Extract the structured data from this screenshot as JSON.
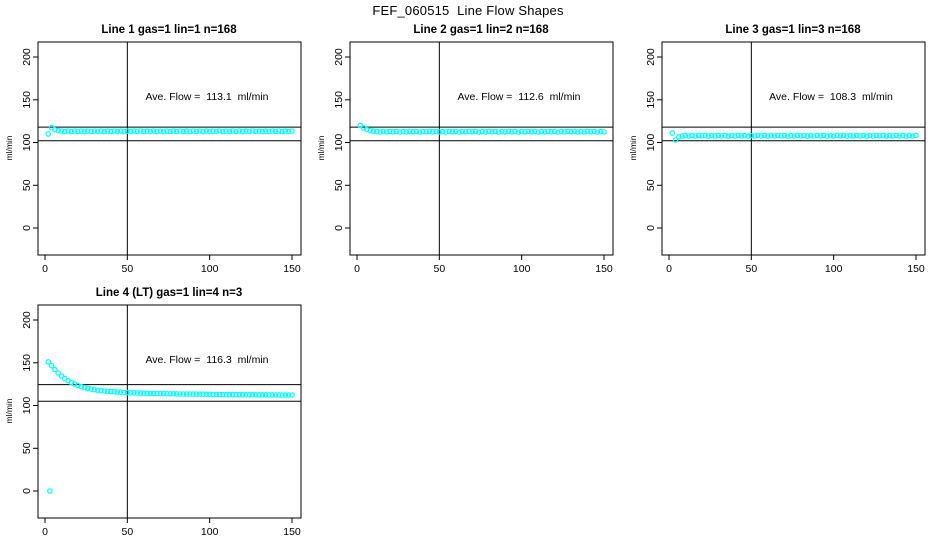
{
  "page": {
    "title": "FEF_060515  Line Flow Shapes"
  },
  "colors": {
    "point": "#00ffff",
    "axis": "#000000",
    "background": "#ffffff"
  },
  "axes": {
    "x_ticks": [
      0,
      50,
      100,
      150
    ],
    "y_ticks": [
      0,
      50,
      100,
      150,
      200
    ],
    "xlim": [
      -4,
      156
    ],
    "ylim": [
      -9,
      216
    ],
    "y_label": "ml/min",
    "grid": false
  },
  "chart_data": [
    {
      "type": "scatter",
      "title": "Line 1 gas=1 lin=1 n=168",
      "gas": 1,
      "lin": 1,
      "n": 168,
      "annotation": "Ave. Flow =  113.1  ml/min",
      "ave_flow_ml_min": 113.1,
      "vline_x": 50,
      "hlines": [
        102,
        118
      ],
      "x_start": 2,
      "x_step": 2,
      "y": [
        110,
        117.5,
        115,
        114,
        113.5,
        112.8,
        113.3,
        112.9,
        113.4,
        113.0,
        113.5,
        112.8,
        113.3,
        112.9,
        113.4,
        113.0,
        113.5,
        112.8,
        113.3,
        112.9,
        113.4,
        113.0,
        113.5,
        112.8,
        113.3,
        112.9,
        113.4,
        113.0,
        113.5,
        112.8,
        113.3,
        112.9,
        113.4,
        113.0,
        113.5,
        112.8,
        113.3,
        112.9,
        113.4,
        113.0,
        113.5,
        112.8,
        113.3,
        112.9,
        113.4,
        113.0,
        113.5,
        112.8,
        113.3,
        112.9,
        113.4,
        113.0,
        113.5,
        112.8,
        113.3,
        112.9,
        113.4,
        113.0,
        113.5,
        112.8,
        113.3,
        112.9,
        113.4,
        113.0,
        113.5,
        112.8,
        113.3,
        112.9,
        113.4,
        113.0,
        113.5,
        112.8,
        113.3,
        112.9,
        113.4
      ]
    },
    {
      "type": "scatter",
      "title": "Line 2 gas=1 lin=2 n=168",
      "gas": 1,
      "lin": 2,
      "n": 168,
      "annotation": "Ave. Flow =  112.6  ml/min",
      "ave_flow_ml_min": 112.6,
      "vline_x": 50,
      "hlines": [
        102,
        118
      ],
      "x_start": 2,
      "x_step": 2,
      "y": [
        120,
        117,
        115.2,
        114,
        113.3,
        112.9,
        112.3,
        112.8,
        112.4,
        113.0,
        112.5,
        112.9,
        112.3,
        112.8,
        112.4,
        113.0,
        112.5,
        112.9,
        112.3,
        112.8,
        112.4,
        113.0,
        112.5,
        112.9,
        112.3,
        112.8,
        112.4,
        113.0,
        112.5,
        112.9,
        112.3,
        112.8,
        112.4,
        113.0,
        112.5,
        112.9,
        112.3,
        112.8,
        112.4,
        113.0,
        112.5,
        112.9,
        112.3,
        112.8,
        112.4,
        113.0,
        112.5,
        112.9,
        112.3,
        112.8,
        112.4,
        113.0,
        112.5,
        112.9,
        112.3,
        112.8,
        112.4,
        113.0,
        112.5,
        112.9,
        112.3,
        112.8,
        112.4,
        113.0,
        112.5,
        112.9,
        112.3,
        112.8,
        112.4,
        113.0,
        112.5,
        112.9,
        112.3,
        112.8,
        112.4
      ]
    },
    {
      "type": "scatter",
      "title": "Line 3 gas=1 lin=3 n=168",
      "gas": 1,
      "lin": 3,
      "n": 168,
      "annotation": "Ave. Flow =  108.3  ml/min",
      "ave_flow_ml_min": 108.3,
      "vline_x": 50,
      "hlines": [
        102,
        118
      ],
      "x_start": 2,
      "x_step": 2,
      "y": [
        111,
        103,
        106.5,
        107.5,
        108.1,
        107.5,
        108.0,
        107.6,
        108.2,
        107.7,
        108.1,
        107.5,
        108.0,
        107.6,
        108.2,
        107.7,
        108.1,
        107.5,
        108.0,
        107.6,
        108.2,
        107.7,
        108.1,
        107.5,
        108.0,
        107.6,
        108.2,
        107.7,
        108.1,
        107.5,
        108.0,
        107.6,
        108.2,
        107.7,
        108.1,
        107.5,
        108.0,
        107.6,
        108.2,
        107.7,
        108.1,
        107.5,
        108.0,
        107.6,
        108.2,
        107.7,
        108.1,
        107.5,
        108.0,
        107.6,
        108.2,
        107.7,
        108.1,
        107.5,
        108.0,
        107.6,
        108.2,
        107.7,
        108.1,
        107.5,
        108.0,
        107.6,
        108.2,
        107.7,
        108.1,
        107.5,
        108.0,
        107.6,
        108.2,
        107.7,
        108.1,
        107.5,
        108.0,
        107.6,
        108.2
      ]
    },
    {
      "type": "scatter",
      "title": "Line 4 (LT) gas=1 lin=4 n=3",
      "gas": 1,
      "lin": 4,
      "n": 3,
      "annotation": "Ave. Flow =  116.3  ml/min",
      "ave_flow_ml_min": 116.3,
      "vline_x": 50,
      "hlines": [
        105,
        124.5
      ],
      "x_start": 2,
      "x_step": 2,
      "y": [
        151,
        146.5,
        142,
        138,
        134.5,
        131.5,
        129,
        126.8,
        125,
        123.4,
        122,
        120.9,
        120,
        119.2,
        118.5,
        117.9,
        117.4,
        117,
        116.6,
        116.3,
        116,
        115.7,
        115.5,
        115.3,
        115.1,
        114.9,
        114.8,
        114.6,
        114.5,
        114.4,
        114.3,
        114.2,
        114.1,
        114,
        113.9,
        113.9,
        113.8,
        113.7,
        113.7,
        113.6,
        113.5,
        113.5,
        113.4,
        113.4,
        113.3,
        113.3,
        113.2,
        113.2,
        113.1,
        113.1,
        113,
        113,
        112.9,
        112.9,
        112.8,
        112.8,
        112.8,
        112.7,
        112.7,
        112.7,
        112.6,
        112.6,
        112.6,
        112.5,
        112.5,
        112.5,
        112.5,
        112.4,
        112.4,
        112.4,
        112.4,
        112.3,
        112.3,
        112.3,
        112.3
      ],
      "extra_points": [
        [
          3,
          0
        ]
      ]
    }
  ]
}
